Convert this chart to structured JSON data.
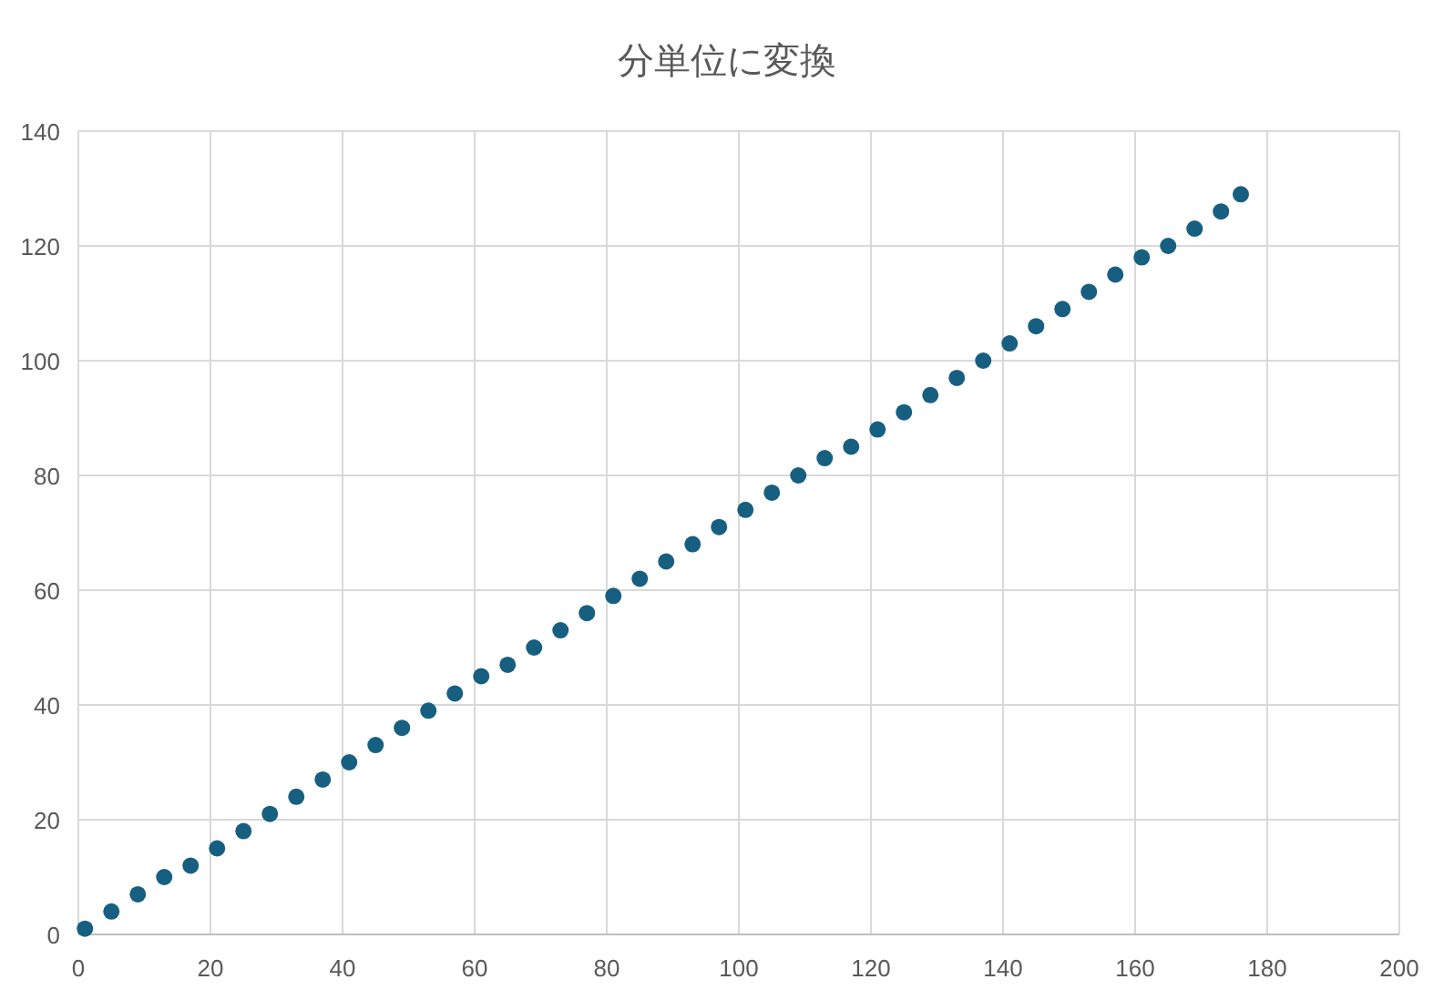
{
  "chart_data": {
    "type": "scatter",
    "title": "分単位に変換",
    "x": [
      1,
      5,
      9,
      13,
      17,
      21,
      25,
      29,
      33,
      37,
      41,
      45,
      49,
      53,
      57,
      61,
      65,
      69,
      73,
      77,
      81,
      85,
      89,
      93,
      97,
      101,
      105,
      109,
      113,
      117,
      121,
      125,
      129,
      133,
      137,
      141,
      145,
      149,
      153,
      157,
      161,
      165,
      169,
      173,
      176
    ],
    "series": [
      {
        "color": "#175f80",
        "values": [
          1,
          4,
          7,
          10,
          12,
          15,
          18,
          21,
          24,
          27,
          30,
          33,
          36,
          39,
          42,
          45,
          47,
          50,
          53,
          56,
          59,
          62,
          65,
          68,
          71,
          74,
          77,
          80,
          83,
          85,
          88,
          91,
          94,
          97,
          100,
          103,
          106,
          109,
          112,
          115,
          118,
          120,
          123,
          126,
          129
        ]
      }
    ],
    "xlim": [
      0,
      200
    ],
    "ylim": [
      0,
      140
    ],
    "xticks": [
      0,
      20,
      40,
      60,
      80,
      100,
      120,
      140,
      160,
      180,
      200
    ],
    "yticks": [
      0,
      20,
      40,
      60,
      80,
      100,
      120,
      140
    ],
    "grid": true,
    "marker": "circle"
  }
}
